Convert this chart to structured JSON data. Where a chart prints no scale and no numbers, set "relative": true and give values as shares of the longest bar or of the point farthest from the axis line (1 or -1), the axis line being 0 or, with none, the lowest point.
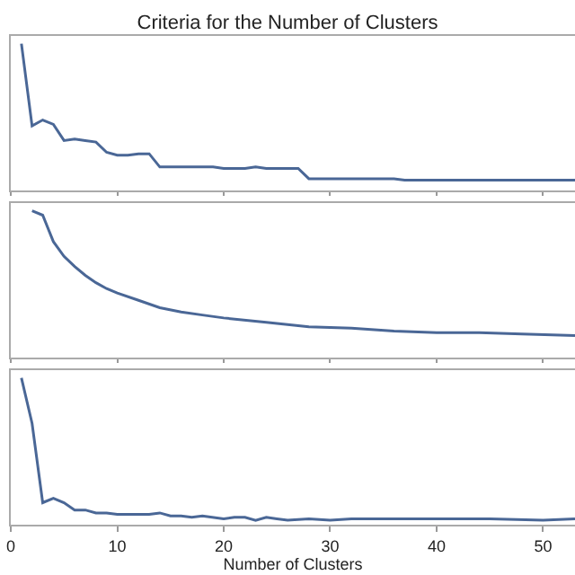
{
  "chart_data": [
    {
      "type": "line",
      "title": "Criteria for the Number of Clusters",
      "relative": true,
      "tick_labels": false,
      "xlim": [
        0,
        53
      ],
      "xticks": [
        0,
        10,
        20,
        30,
        40,
        50
      ],
      "x": [
        1,
        2,
        3,
        4,
        5,
        6,
        7,
        8,
        9,
        10,
        11,
        12,
        13,
        14,
        15,
        16,
        17,
        18,
        19,
        20,
        21,
        22,
        23,
        24,
        25,
        26,
        27,
        28,
        29,
        30,
        31,
        32,
        33,
        34,
        35,
        36,
        37,
        38,
        39,
        40,
        41,
        42,
        43,
        44,
        45,
        46,
        47,
        48,
        49,
        50,
        51,
        52,
        53
      ],
      "series": [
        {
          "color": "#4a6796",
          "values": [
            1,
            0.44,
            0.48,
            0.45,
            0.34,
            0.35,
            0.34,
            0.33,
            0.26,
            0.24,
            0.24,
            0.25,
            0.25,
            0.16,
            0.16,
            0.16,
            0.16,
            0.16,
            0.16,
            0.15,
            0.15,
            0.15,
            0.16,
            0.15,
            0.15,
            0.15,
            0.15,
            0.08,
            0.08,
            0.08,
            0.08,
            0.08,
            0.08,
            0.08,
            0.08,
            0.08,
            0.07,
            0.07,
            0.07,
            0.07,
            0.07,
            0.07,
            0.07,
            0.07,
            0.07,
            0.07,
            0.07,
            0.07,
            0.07,
            0.07,
            0.07,
            0.07,
            0.07
          ]
        }
      ]
    },
    {
      "type": "line",
      "relative": true,
      "tick_labels": false,
      "xlim": [
        0,
        53
      ],
      "xticks": [
        0,
        10,
        20,
        30,
        40,
        50
      ],
      "x": [
        2,
        3,
        4,
        5,
        6,
        7,
        8,
        9,
        10,
        12,
        14,
        16,
        18,
        20,
        24,
        28,
        32,
        36,
        40,
        44,
        48,
        53
      ],
      "series": [
        {
          "color": "#4a6796",
          "values": [
            1,
            0.97,
            0.79,
            0.69,
            0.62,
            0.56,
            0.51,
            0.47,
            0.44,
            0.39,
            0.34,
            0.31,
            0.29,
            0.27,
            0.24,
            0.21,
            0.2,
            0.18,
            0.17,
            0.17,
            0.16,
            0.15
          ]
        }
      ]
    },
    {
      "type": "line",
      "relative": true,
      "tick_labels": "x",
      "xlabel": "Number of Clusters",
      "xlim": [
        0,
        53
      ],
      "xticks": [
        0,
        10,
        20,
        30,
        40,
        50
      ],
      "x": [
        1,
        2,
        3,
        4,
        5,
        6,
        7,
        8,
        9,
        10,
        12,
        13,
        14,
        15,
        16,
        17,
        18,
        20,
        21,
        22,
        23,
        24,
        25,
        26,
        28,
        30,
        32,
        35,
        40,
        45,
        50,
        53
      ],
      "series": [
        {
          "color": "#4a6796",
          "values": [
            1,
            0.69,
            0.15,
            0.18,
            0.15,
            0.1,
            0.1,
            0.08,
            0.08,
            0.07,
            0.07,
            0.07,
            0.08,
            0.06,
            0.06,
            0.05,
            0.06,
            0.04,
            0.05,
            0.05,
            0.03,
            0.05,
            0.04,
            0.03,
            0.04,
            0.03,
            0.04,
            0.04,
            0.04,
            0.04,
            0.03,
            0.04
          ]
        }
      ]
    }
  ]
}
